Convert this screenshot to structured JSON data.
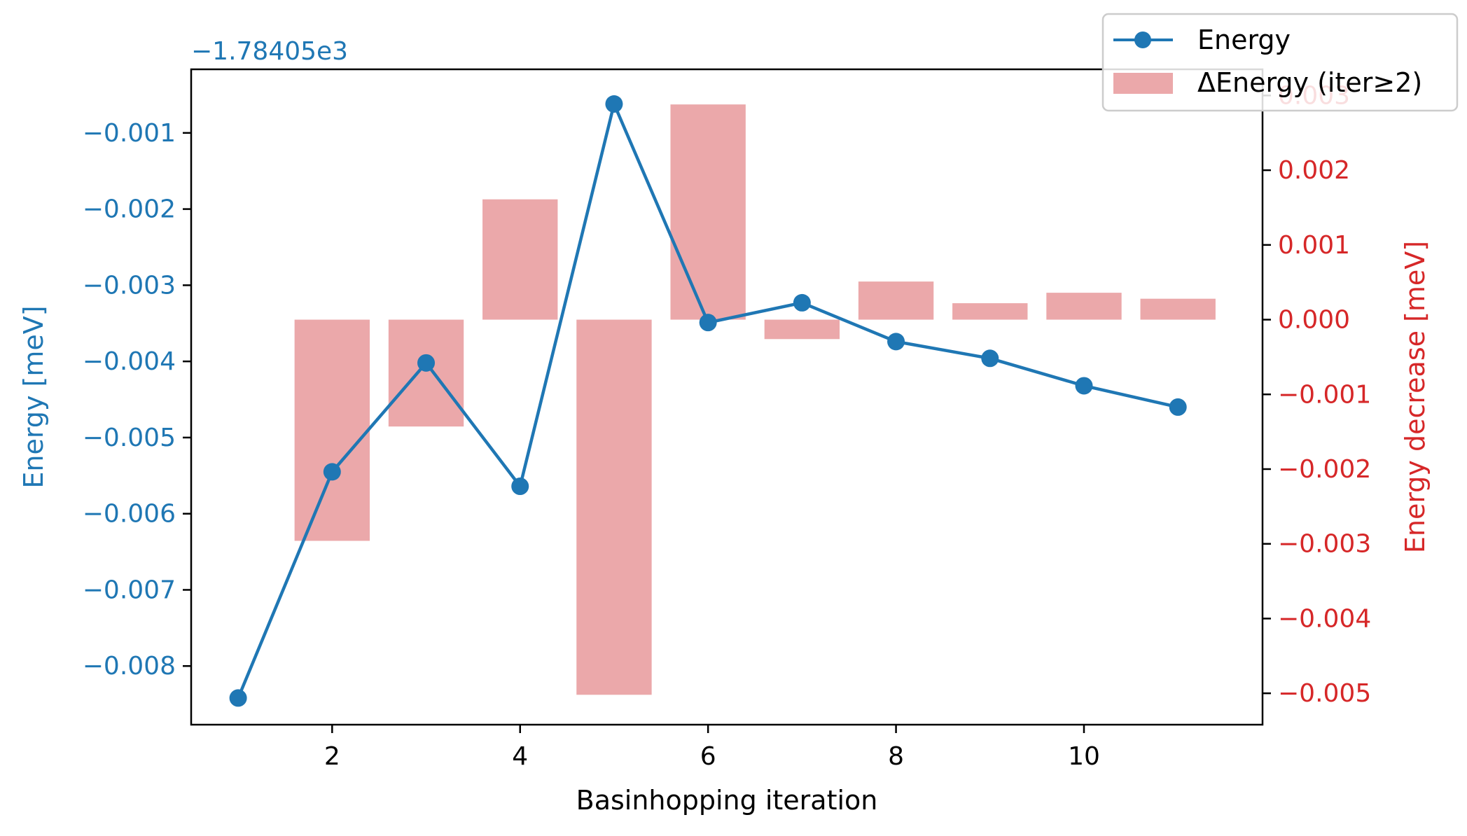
{
  "chart_data": {
    "type": "line+bar (dual axis)",
    "xlabel": "Basinhopping iteration",
    "x_ticks": [
      2,
      4,
      6,
      8,
      10
    ],
    "xlim": [
      0.5,
      11.9
    ],
    "left_axis": {
      "label": "Energy [meV]",
      "offset_text": "−1.78405e3",
      "ticks": [
        -0.008,
        -0.007,
        -0.006,
        -0.005,
        -0.004,
        -0.003,
        -0.002,
        -0.001
      ],
      "tick_labels": [
        "−0.008",
        "−0.007",
        "−0.006",
        "−0.005",
        "−0.004",
        "−0.003",
        "−0.002",
        "−0.001"
      ],
      "ylim": [
        -0.00877,
        -0.000165
      ],
      "color": "#1f77b4"
    },
    "right_axis": {
      "label": "Energy decrease [meV]",
      "ticks": [
        -0.005,
        -0.004,
        -0.003,
        -0.002,
        -0.001,
        0.0,
        0.001,
        0.002,
        0.003
      ],
      "tick_labels": [
        "−0.005",
        "−0.004",
        "−0.003",
        "−0.002",
        "−0.001",
        "0.000",
        "0.001",
        "0.002",
        "0.003"
      ],
      "ylim": [
        -0.00542,
        0.00335
      ],
      "color": "#d62728"
    },
    "series": [
      {
        "name": "Energy",
        "type": "line",
        "axis": "left",
        "color": "#1f77b4",
        "x": [
          1,
          2,
          3,
          4,
          5,
          6,
          7,
          8,
          9,
          10,
          11
        ],
        "values": [
          -0.00842,
          -0.00545,
          -0.00402,
          -0.00564,
          -0.00062,
          -0.00349,
          -0.00323,
          -0.00374,
          -0.00396,
          -0.00432,
          -0.0046
        ]
      },
      {
        "name": "ΔEnergy (iter≥2)",
        "type": "bar",
        "axis": "right",
        "color": "#eba8aa",
        "x": [
          2,
          3,
          4,
          5,
          6,
          7,
          8,
          9,
          10,
          11
        ],
        "values": [
          -0.00296,
          -0.00143,
          0.00161,
          -0.00502,
          0.00288,
          -0.00026,
          0.00051,
          0.00022,
          0.00036,
          0.00028
        ]
      }
    ],
    "legend": {
      "placement": "top-right",
      "entries": [
        "Energy",
        "ΔEnergy (iter≥2)"
      ]
    }
  }
}
